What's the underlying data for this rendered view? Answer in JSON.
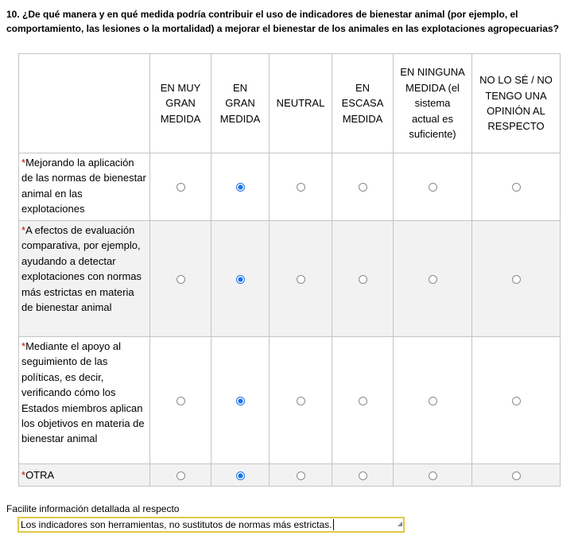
{
  "question": "10. ¿De qué manera y en qué medida podría contribuir el uso de indicadores de bienestar animal (por ejemplo, el comportamiento, las lesiones o la mortalidad) a mejorar el bienestar de los animales en las explotaciones agropecuarias?",
  "columns": [
    "EN MUY GRAN MEDIDA",
    "EN GRAN MEDIDA",
    "NEUTRAL",
    "EN ESCASA MEDIDA",
    "EN NINGUNA MEDIDA (el sistema actual es suficiente)",
    "NO LO SÉ / NO TENGO UNA OPINIÓN AL RESPECTO"
  ],
  "required_mark": "*",
  "rows": [
    {
      "label": "Mejorando la aplicación de las normas de bienestar animal en las explotaciones",
      "selected": 1
    },
    {
      "label": "A efectos de evaluación comparativa, por ejemplo, ayudando a detectar explotaciones con normas más estrictas en materia de bienestar animal",
      "selected": 1
    },
    {
      "label": "Mediante el apoyo al seguimiento de las políticas, es decir, verificando cómo los Estados miembros aplican los objetivos en materia de bienestar animal",
      "selected": 1
    },
    {
      "label": "OTRA",
      "selected": 1
    }
  ],
  "detail": {
    "label": "Facilite información detallada al respecto",
    "value": "Los indicadores son herramientas, no sustitutos de normas más estrictas."
  },
  "colors": {
    "accent": "#1a73e8",
    "focus_border": "#e0c84a",
    "required": "#cc0000"
  }
}
